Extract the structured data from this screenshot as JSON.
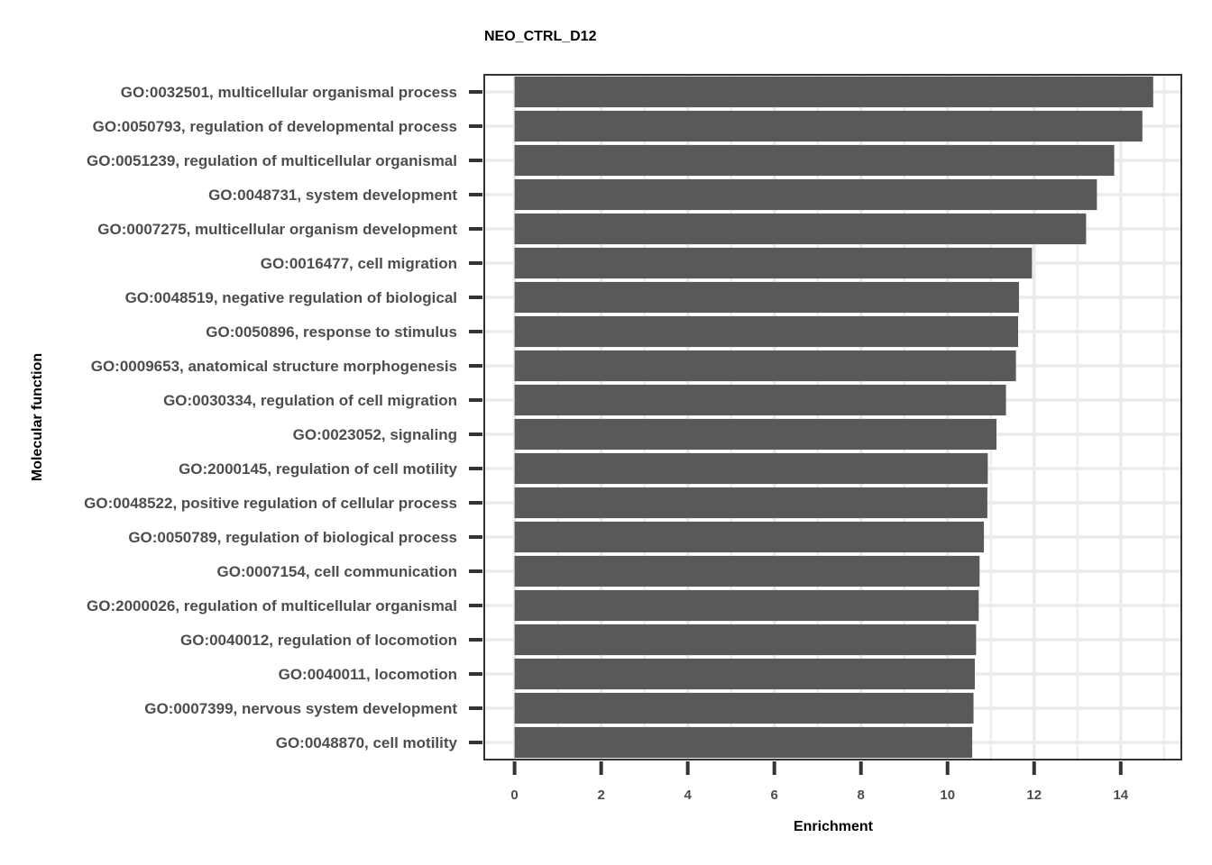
{
  "chart_data": {
    "type": "bar",
    "orientation": "horizontal",
    "title": "NEO_CTRL_D12",
    "xlabel": "Enrichment",
    "ylabel": "Molecular function",
    "xlim": [
      -0.7,
      15.4
    ],
    "xticks": [
      0,
      2,
      4,
      6,
      8,
      10,
      12,
      14
    ],
    "grid": true,
    "legend": "none",
    "colors": {
      "bar": "#595959",
      "grid": "#ebebeb",
      "panel_border": "#333333",
      "tick": "#333333"
    },
    "categories": [
      "GO:0032501, multicellular organismal process",
      "GO:0050793, regulation of developmental process",
      "GO:0051239, regulation of multicellular organismal",
      "GO:0048731, system development",
      "GO:0007275, multicellular organism development",
      "GO:0016477, cell migration",
      "GO:0048519, negative regulation of biological",
      "GO:0050896, response to stimulus",
      "GO:0009653, anatomical structure morphogenesis",
      "GO:0030334, regulation of cell migration",
      "GO:0023052, signaling",
      "GO:2000145, regulation of cell motility",
      "GO:0048522, positive regulation of cellular process",
      "GO:0050789, regulation of biological process",
      "GO:0007154, cell communication",
      "GO:2000026, regulation of multicellular organismal",
      "GO:0040012, regulation of locomotion",
      "GO:0040011, locomotion",
      "GO:0007399, nervous system development",
      "GO:0048870, cell motility"
    ],
    "values": [
      14.75,
      14.5,
      13.85,
      13.45,
      13.2,
      11.95,
      11.65,
      11.63,
      11.58,
      11.35,
      11.13,
      10.93,
      10.92,
      10.84,
      10.74,
      10.72,
      10.66,
      10.63,
      10.6,
      10.57
    ]
  }
}
